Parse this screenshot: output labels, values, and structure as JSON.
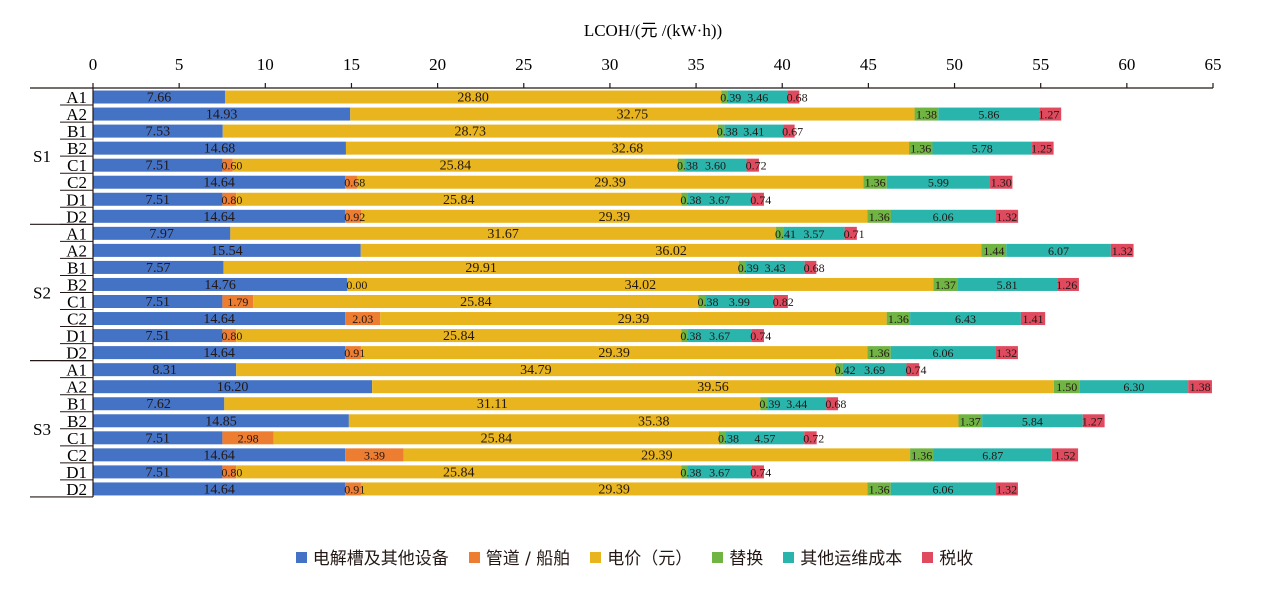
{
  "chart_data": {
    "type": "bar",
    "orientation": "horizontal",
    "stacked": true,
    "title": "",
    "xlabel": "LCOH/(元 /(kW·h))",
    "ylabel": "",
    "xlim": [
      0,
      65
    ],
    "x_ticks": [
      "0",
      "5",
      "10",
      "15",
      "20",
      "25",
      "30",
      "35",
      "40",
      "45",
      "50",
      "55",
      "60",
      "65"
    ],
    "x_axis_position": "top",
    "grid": false,
    "legend_position": "bottom",
    "groups": [
      "S1",
      "S2",
      "S3"
    ],
    "categories": [
      "S1-A1",
      "S1-A2",
      "S1-B1",
      "S1-B2",
      "S1-C1",
      "S1-C2",
      "S1-D1",
      "S1-D2",
      "S2-A1",
      "S2-A2",
      "S2-B1",
      "S2-B2",
      "S2-C1",
      "S2-C2",
      "S2-D1",
      "S2-D2",
      "S3-A1",
      "S3-A2",
      "S3-B1",
      "S3-B2",
      "S3-C1",
      "S3-C2",
      "S3-D1",
      "S3-D2"
    ],
    "category_labels": [
      "A1",
      "A2",
      "B1",
      "B2",
      "C1",
      "C2",
      "D1",
      "D2",
      "A1",
      "A2",
      "B1",
      "B2",
      "C1",
      "C2",
      "D1",
      "D2",
      "A1",
      "A2",
      "B1",
      "B2",
      "C1",
      "C2",
      "D1",
      "D2"
    ],
    "series": [
      {
        "name": "电解槽及其他设备",
        "color": "#4472c4",
        "values": [
          7.66,
          14.93,
          7.53,
          14.68,
          7.51,
          14.64,
          7.51,
          14.64,
          7.97,
          15.54,
          7.57,
          14.76,
          7.51,
          14.64,
          7.51,
          14.64,
          8.31,
          16.2,
          7.62,
          14.85,
          7.51,
          14.64,
          7.51,
          14.64
        ]
      },
      {
        "name": "管道 / 船舶",
        "color": "#ed7d31",
        "values": [
          null,
          null,
          null,
          null,
          0.6,
          0.68,
          0.8,
          0.92,
          null,
          null,
          null,
          0.0,
          1.79,
          2.03,
          0.8,
          0.91,
          null,
          null,
          null,
          null,
          2.98,
          3.39,
          0.8,
          0.91
        ]
      },
      {
        "name": "电价（元）",
        "color": "#e9b51e",
        "values": [
          28.8,
          32.75,
          28.73,
          32.68,
          25.84,
          29.39,
          25.84,
          29.39,
          31.67,
          36.02,
          29.91,
          34.02,
          25.84,
          29.39,
          25.84,
          29.39,
          34.79,
          39.56,
          31.11,
          35.38,
          25.84,
          29.39,
          25.84,
          29.39
        ]
      },
      {
        "name": "替换",
        "color": "#70b443",
        "values": [
          0.39,
          1.38,
          0.38,
          1.36,
          0.38,
          1.36,
          0.38,
          1.36,
          0.41,
          1.44,
          0.39,
          1.37,
          0.38,
          1.36,
          0.38,
          1.36,
          0.42,
          1.5,
          0.39,
          1.37,
          0.38,
          1.36,
          0.38,
          1.36
        ]
      },
      {
        "name": "其他运维成本",
        "color": "#2ab5ac",
        "values": [
          3.46,
          5.86,
          3.41,
          5.78,
          3.6,
          5.99,
          3.67,
          6.06,
          3.57,
          6.07,
          3.43,
          5.81,
          3.99,
          6.43,
          3.67,
          6.06,
          3.69,
          6.3,
          3.44,
          5.84,
          4.57,
          6.87,
          3.67,
          6.06
        ]
      },
      {
        "name": "税收",
        "color": "#e04a5f",
        "values": [
          0.68,
          1.27,
          0.67,
          1.25,
          0.72,
          1.3,
          0.74,
          1.32,
          0.71,
          1.32,
          0.68,
          1.26,
          0.82,
          1.41,
          0.74,
          1.32,
          0.74,
          1.38,
          0.68,
          1.27,
          0.72,
          1.52,
          0.74,
          1.32
        ]
      }
    ]
  },
  "legend": {
    "items": [
      {
        "label": "电解槽及其他设备",
        "color": "#4472c4"
      },
      {
        "label": "管道 / 船舶",
        "color": "#ed7d31"
      },
      {
        "label": "电价（元）",
        "color": "#e9b51e"
      },
      {
        "label": "替换",
        "color": "#70b443"
      },
      {
        "label": "其他运维成本",
        "color": "#2ab5ac"
      },
      {
        "label": "税收",
        "color": "#e04a5f"
      }
    ]
  }
}
